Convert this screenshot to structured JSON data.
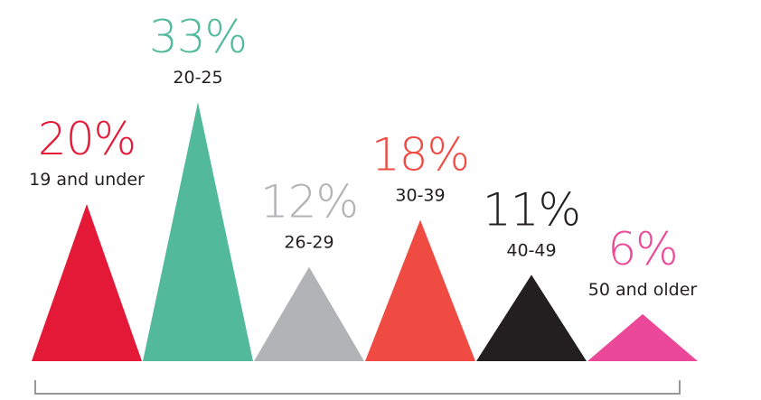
{
  "chart_data": {
    "type": "bar",
    "mark_shape": "triangle",
    "categories": [
      "19 and under",
      "20-25",
      "26-29",
      "30-39",
      "40-49",
      "50 and older"
    ],
    "values": [
      20,
      33,
      12,
      18,
      11,
      6
    ],
    "value_labels": [
      "20%",
      "33%",
      "12%",
      "18%",
      "11%",
      "6%"
    ],
    "colors": [
      "#e31937",
      "#52b99b",
      "#b2b3b6",
      "#ef4b43",
      "#231f20",
      "#ec4899"
    ],
    "unit": "%",
    "grid": false,
    "legend": "none",
    "ylim": [
      0,
      33
    ]
  }
}
